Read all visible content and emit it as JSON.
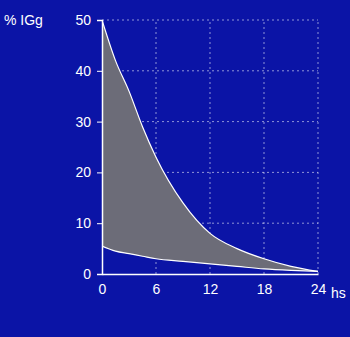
{
  "chart_data": {
    "type": "range_area",
    "y_label": "% IGg",
    "x_label": "hs",
    "x": [
      0,
      1.5,
      3,
      4.5,
      6,
      9,
      12,
      15,
      18,
      21,
      24
    ],
    "series": [
      {
        "values": [
          5.5,
          4.5,
          4,
          3.5,
          3,
          2.5,
          2,
          1.5,
          1,
          0.7,
          0.5
        ]
      },
      {
        "values": [
          50,
          42,
          36,
          29,
          23,
          14,
          8,
          5,
          3,
          1.5,
          0.5
        ]
      }
    ],
    "color": "#6c6c78",
    "xlim": [
      0,
      24
    ],
    "xticks": [
      0,
      6,
      12,
      18,
      24
    ],
    "ylim": [
      0,
      50
    ],
    "yticks": [
      0,
      10,
      20,
      30,
      40,
      50
    ],
    "grid": true
  }
}
